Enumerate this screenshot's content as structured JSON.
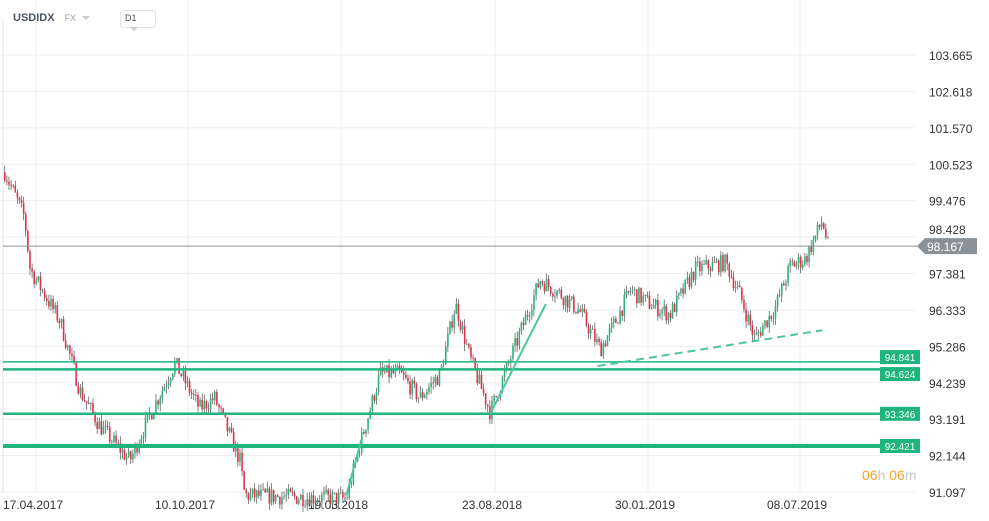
{
  "header": {
    "symbol": "USDIDX",
    "market": "FX",
    "timeframe": "D1"
  },
  "timer": {
    "hours": "06",
    "h": "h",
    "minutes": "06",
    "m": "m"
  },
  "colors": {
    "up": "#2bb37a",
    "down": "#e0314b",
    "level": "#1fb57d",
    "grid": "#eeeeee",
    "price_tag": "#8a9298"
  },
  "chart_data": {
    "type": "candlestick",
    "title": "",
    "y_ticks": [
      "103.665",
      "102.618",
      "101.570",
      "100.523",
      "99.476",
      "98.428",
      "97.381",
      "96.333",
      "95.286",
      "94.239",
      "93.191",
      "92.144",
      "91.097"
    ],
    "ylim": [
      91.097,
      103.665
    ],
    "x_ticks": [
      "17.04.2017",
      "10.10.2017",
      "19.03.2018",
      "23.08.2018",
      "30.01.2019",
      "08.07.2019"
    ],
    "grid": true,
    "current_price": "98.167",
    "approx_closes": [
      [
        "2017-03-18",
        100.3
      ],
      [
        "2017-04-08",
        99.0
      ],
      [
        "2017-04-14",
        97.5
      ],
      [
        "2017-05-16",
        96.0
      ],
      [
        "2017-06-06",
        94.0
      ],
      [
        "2017-06-27",
        93.0
      ],
      [
        "2017-07-29",
        92.0
      ],
      [
        "2017-08-19",
        93.3
      ],
      [
        "2017-09-15",
        94.8
      ],
      [
        "2017-10-11",
        93.5
      ],
      [
        "2017-10-27",
        93.8
      ],
      [
        "2017-11-23",
        92.0
      ],
      [
        "2017-11-28",
        91.0
      ],
      [
        "2018-03-16",
        90.9
      ],
      [
        "2018-03-31",
        92.5
      ],
      [
        "2018-04-21",
        94.5
      ],
      [
        "2018-05-12",
        94.5
      ],
      [
        "2018-06-02",
        93.8
      ],
      [
        "2018-06-24",
        94.5
      ],
      [
        "2018-07-10",
        96.5
      ],
      [
        "2018-07-26",
        94.9
      ],
      [
        "2018-08-16",
        93.4
      ],
      [
        "2018-09-06",
        94.9
      ],
      [
        "2018-10-08",
        97.2
      ],
      [
        "2018-10-29",
        96.8
      ],
      [
        "2018-11-19",
        96.3
      ],
      [
        "2018-12-11",
        95.2
      ],
      [
        "2018-12-27",
        96.0
      ],
      [
        "2019-01-12",
        96.9
      ],
      [
        "2019-02-02",
        96.5
      ],
      [
        "2019-02-23",
        96.2
      ],
      [
        "2019-03-22",
        97.5
      ],
      [
        "2019-04-23",
        97.7
      ],
      [
        "2019-05-08",
        96.8
      ],
      [
        "2019-05-24",
        95.5
      ],
      [
        "2019-06-15",
        96.4
      ],
      [
        "2019-07-01",
        97.6
      ],
      [
        "2019-07-17",
        97.8
      ],
      [
        "2019-08-04",
        98.9
      ],
      [
        "2019-08-10",
        98.167
      ]
    ],
    "levels": [
      {
        "price": 94.841,
        "label": "94.841"
      },
      {
        "price": 94.624,
        "label": "94.624"
      },
      {
        "price": 93.346,
        "label": "93.346"
      },
      {
        "price": 92.421,
        "label": "92.421"
      }
    ],
    "trendlines": [
      {
        "from": [
          "2018-08-16",
          93.35
        ],
        "to": [
          "2018-10-14",
          96.5
        ],
        "style": "solid"
      },
      {
        "from": [
          "2018-03-16",
          91.0
        ],
        "to": [
          "2018-04-01",
          92.6
        ],
        "style": "solid"
      },
      {
        "from": [
          "2018-12-08",
          94.72
        ],
        "to": [
          "2019-08-04",
          95.75
        ],
        "style": "dashed"
      }
    ]
  }
}
